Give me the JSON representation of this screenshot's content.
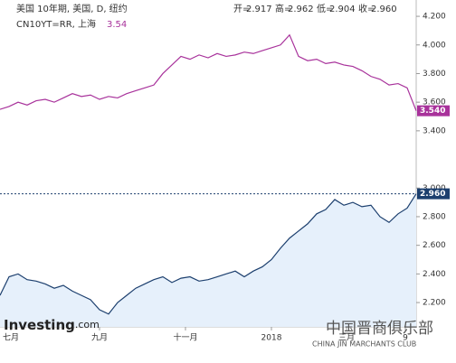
{
  "chart_data": {
    "type": "line",
    "series": [
      {
        "name": "美国 10年期, 美国, D, 纽约",
        "color": "#1c3f6e",
        "fill": "#e6f0fb",
        "last_label": "2.960",
        "values": [
          2.25,
          2.38,
          2.4,
          2.36,
          2.35,
          2.33,
          2.3,
          2.32,
          2.28,
          2.25,
          2.22,
          2.15,
          2.12,
          2.2,
          2.25,
          2.3,
          2.33,
          2.36,
          2.38,
          2.34,
          2.37,
          2.38,
          2.35,
          2.36,
          2.38,
          2.4,
          2.42,
          2.38,
          2.42,
          2.45,
          2.5,
          2.58,
          2.65,
          2.7,
          2.75,
          2.82,
          2.85,
          2.92,
          2.88,
          2.9,
          2.87,
          2.88,
          2.8,
          2.76,
          2.82,
          2.86,
          2.96
        ]
      },
      {
        "name": "CN10YT=RR, 上海",
        "color": "#a8329b",
        "last_label": "3.540",
        "legend_value": "3.54",
        "values": [
          3.55,
          3.57,
          3.6,
          3.58,
          3.61,
          3.62,
          3.6,
          3.63,
          3.66,
          3.64,
          3.65,
          3.62,
          3.64,
          3.63,
          3.66,
          3.68,
          3.7,
          3.72,
          3.8,
          3.86,
          3.92,
          3.9,
          3.93,
          3.91,
          3.94,
          3.92,
          3.93,
          3.95,
          3.94,
          3.96,
          3.98,
          4.0,
          4.07,
          3.92,
          3.89,
          3.9,
          3.87,
          3.88,
          3.86,
          3.85,
          3.82,
          3.78,
          3.76,
          3.72,
          3.73,
          3.7,
          3.54
        ]
      }
    ],
    "ohlc": [
      "开=",
      "2.917",
      "高=",
      "2.962",
      "低=",
      "2.904",
      "收=",
      "2.960"
    ],
    "xlim": [
      0,
      46
    ],
    "xticks": [
      {
        "value": 1.2,
        "label": "七月"
      },
      {
        "value": 11,
        "label": "九月"
      },
      {
        "value": 20.5,
        "label": "十一月"
      },
      {
        "value": 30,
        "label": "2018"
      },
      {
        "value": 38.3,
        "label": "三月"
      },
      {
        "value": 44.8,
        "label": "9"
      }
    ],
    "ylim": [
      2.03,
      4.314
    ],
    "yticks": [
      {
        "value": 2.2,
        "label": "2.200"
      },
      {
        "value": 2.4,
        "label": "2.400"
      },
      {
        "value": 2.6,
        "label": "2.600"
      },
      {
        "value": 2.8,
        "label": "2.800"
      },
      {
        "value": 3.0,
        "label": "3.000"
      },
      {
        "value": 3.4,
        "label": "3.400"
      },
      {
        "value": 3.6,
        "label": "3.600"
      },
      {
        "value": 3.8,
        "label": "3.800"
      },
      {
        "value": 4.0,
        "label": "4.000"
      },
      {
        "value": 4.2,
        "label": "4.200"
      }
    ],
    "watermark": "Investing",
    "watermark_suffix": ".com",
    "club": "中国晋商俱乐部",
    "club_en": "CHINA JIN MARCHANTS CLUB"
  }
}
